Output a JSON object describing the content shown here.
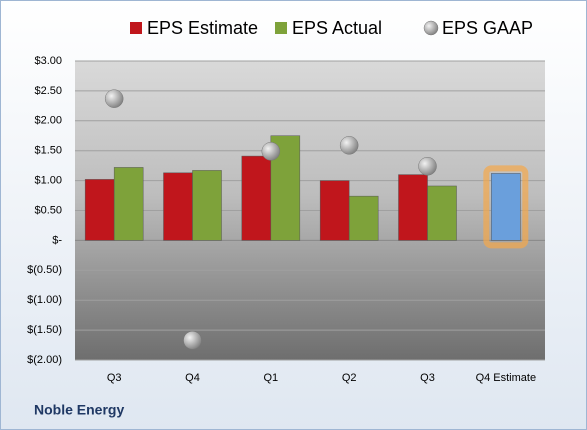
{
  "chart_data": {
    "type": "bar",
    "categories": [
      "Q3",
      "Q4",
      "Q1",
      "Q2",
      "Q3",
      "Q4 Estimate"
    ],
    "series": [
      {
        "name": "EPS Estimate",
        "color": "#c0161c",
        "type": "bar",
        "values": [
          1.02,
          1.13,
          1.41,
          1.0,
          1.1,
          1.12
        ],
        "colors": [
          "#c0161c",
          "#c0161c",
          "#c0161c",
          "#c0161c",
          "#c0161c",
          "#6a9fdc"
        ]
      },
      {
        "name": "EPS Actual",
        "color": "#7ea23a",
        "type": "bar",
        "values": [
          1.22,
          1.17,
          1.75,
          0.74,
          0.91,
          null
        ]
      },
      {
        "name": "EPS GAAP",
        "color": "#a6a6a6",
        "type": "scatter",
        "values": [
          2.37,
          -1.67,
          1.49,
          1.59,
          1.24,
          null
        ]
      }
    ],
    "ylim": [
      -2,
      3
    ],
    "yticks": [
      {
        "value": -2,
        "label": "$(2.00)"
      },
      {
        "value": -1.5,
        "label": "$(1.50)"
      },
      {
        "value": -1,
        "label": "$(1.00)"
      },
      {
        "value": -0.5,
        "label": "$(0.50)"
      },
      {
        "value": 0,
        "label": "$-"
      },
      {
        "value": 0.5,
        "label": "$0.50"
      },
      {
        "value": 1,
        "label": "$1.00"
      },
      {
        "value": 1.5,
        "label": "$1.50"
      },
      {
        "value": 2,
        "label": "$2.00"
      },
      {
        "value": 2.5,
        "label": "$2.50"
      },
      {
        "value": 3,
        "label": "$3.00"
      }
    ],
    "grid": true,
    "legend": "top",
    "highlight_color": "#f5a84a",
    "source": "Noble Energy"
  }
}
